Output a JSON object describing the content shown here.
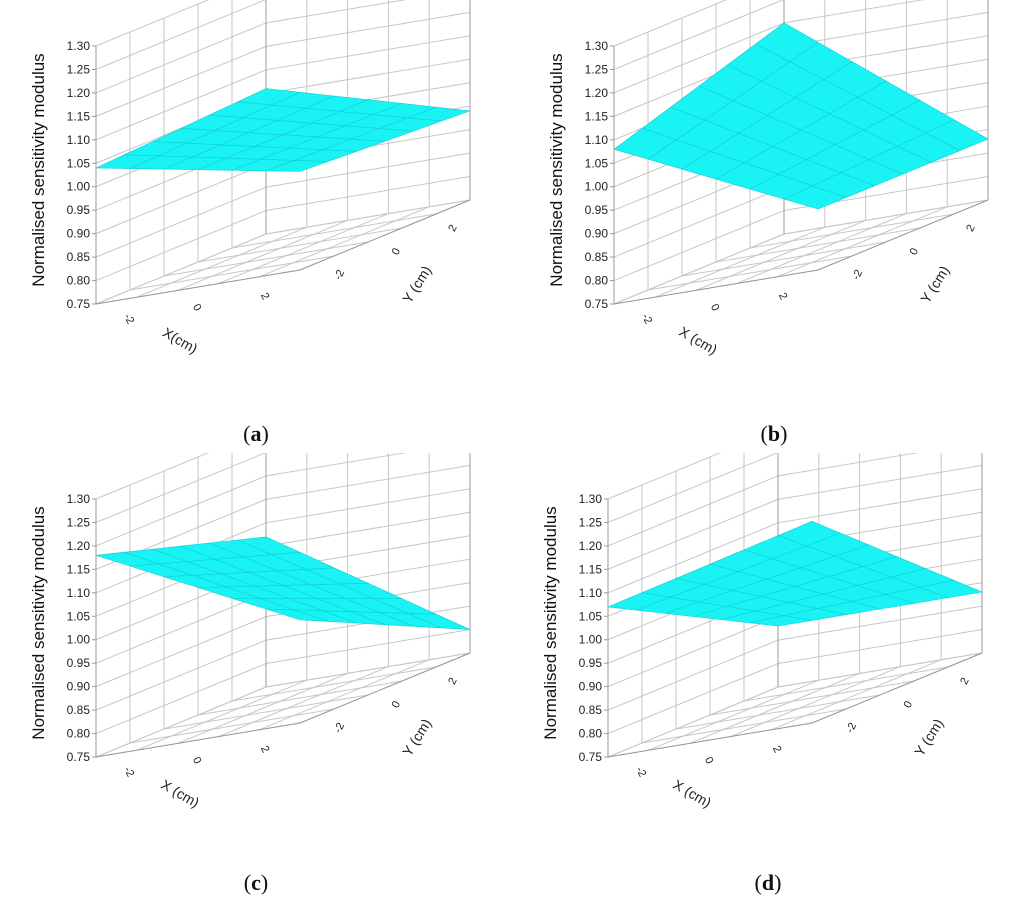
{
  "colors": {
    "surface": "#19f3f3",
    "mesh": "#12cfd6",
    "grid": "#c6c6c6",
    "frame": "#9a9a9a",
    "text": "#222222"
  },
  "chart_data": [
    {
      "type": "surface",
      "panel_label": "a",
      "zlabel": "Normalised sensitivity modulus",
      "xlabel": "X(cm)",
      "ylabel": "Y (cm)",
      "ztick_labels": [
        "0.75",
        "0.80",
        "0.85",
        "0.90",
        "0.95",
        "1.00",
        "1.05",
        "1.10",
        "1.15",
        "1.20",
        "1.25",
        "1.30"
      ],
      "xtick_labels": [
        "-2",
        "0",
        "2"
      ],
      "ytick_labels": [
        "-2",
        "0",
        "2"
      ],
      "zlim": [
        0.75,
        1.3
      ],
      "xlim": [
        -3,
        3
      ],
      "ylim": [
        -3,
        3
      ],
      "grid": true,
      "corners": {
        "x_min_y_max": 1.06,
        "x_max_y_max": 0.94,
        "x_min_y_min": 1.04,
        "x_max_y_min": 0.96
      }
    },
    {
      "type": "surface",
      "panel_label": "b",
      "zlabel": "Normalised sensitivity modulus",
      "xlabel": "X (cm)",
      "ylabel": "Y (cm)",
      "ztick_labels": [
        "0.75",
        "0.80",
        "0.85",
        "0.90",
        "0.95",
        "1.00",
        "1.05",
        "1.10",
        "1.15",
        "1.20",
        "1.25",
        "1.30"
      ],
      "xtick_labels": [
        "-2",
        "0",
        "2"
      ],
      "ytick_labels": [
        "-2",
        "0",
        "2"
      ],
      "zlim": [
        0.75,
        1.3
      ],
      "xlim": [
        -3,
        3
      ],
      "ylim": [
        -3,
        3
      ],
      "grid": true,
      "corners": {
        "x_min_y_max": 1.2,
        "x_max_y_max": 0.88,
        "x_min_y_min": 1.08,
        "x_max_y_min": 0.88
      }
    },
    {
      "type": "surface",
      "panel_label": "c",
      "zlabel": "Normalised sensitivity modulus",
      "xlabel": "X (cm)",
      "ylabel": "Y (cm)",
      "ztick_labels": [
        "0.75",
        "0.80",
        "0.85",
        "0.90",
        "0.95",
        "1.00",
        "1.05",
        "1.10",
        "1.15",
        "1.20",
        "1.25",
        "1.30"
      ],
      "xtick_labels": [
        "-2",
        "0",
        "2"
      ],
      "ytick_labels": [
        "-2",
        "0",
        "2"
      ],
      "zlim": [
        0.75,
        1.3
      ],
      "xlim": [
        -3,
        3
      ],
      "ylim": [
        -3,
        3
      ],
      "grid": true,
      "corners": {
        "x_min_y_max": 1.07,
        "x_max_y_max": 0.8,
        "x_min_y_min": 1.18,
        "x_max_y_min": 0.97
      }
    },
    {
      "type": "surface",
      "panel_label": "d",
      "zlabel": "Normalised sensitivity modulus",
      "xlabel": "X (cm)",
      "ylabel": "Y (cm)",
      "ztick_labels": [
        "0.75",
        "0.80",
        "0.85",
        "0.90",
        "0.95",
        "1.00",
        "1.05",
        "1.10",
        "1.15",
        "1.20",
        "1.25",
        "1.30"
      ],
      "xtick_labels": [
        "-2",
        "0",
        "2"
      ],
      "ytick_labels": [
        "-2",
        "0",
        "2"
      ],
      "zlim": [
        0.75,
        1.3
      ],
      "xlim": [
        -3,
        3
      ],
      "ylim": [
        -3,
        3
      ],
      "grid": true,
      "corners": {
        "x_min_y_max": 0.88,
        "x_max_y_max": 0.88,
        "x_min_y_min": 1.07,
        "x_max_y_min": 1.18
      }
    }
  ]
}
